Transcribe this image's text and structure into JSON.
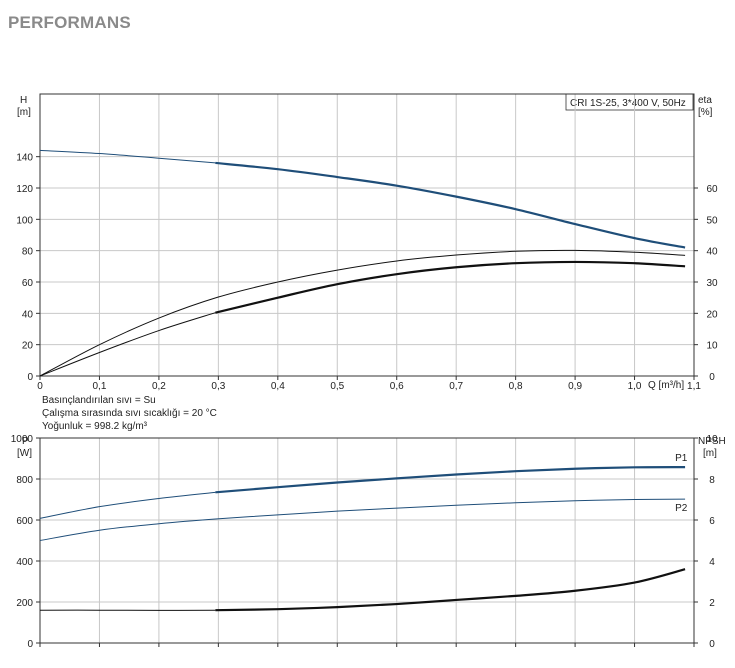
{
  "page": {
    "title": "PERFORMANS"
  },
  "chart_data": [
    {
      "type": "line",
      "legend_box": "CRI 1S-25, 3*400 V, 50Hz",
      "xlabel": "Q [m³/h]",
      "ylabel_left": [
        "H",
        "[m]"
      ],
      "ylabel_right": [
        "eta",
        "[%]"
      ],
      "xlim": [
        0,
        1.1
      ],
      "ylim_left": [
        0,
        180
      ],
      "ylim_right": [
        0,
        90
      ],
      "x_ticks": [
        "0",
        "0,1",
        "0,2",
        "0,3",
        "0,4",
        "0,5",
        "0,6",
        "0,7",
        "0,8",
        "0,9",
        "1,0",
        "1,1"
      ],
      "x_tick_values": [
        0,
        0.1,
        0.2,
        0.3,
        0.4,
        0.5,
        0.6,
        0.7,
        0.8,
        0.9,
        1.0,
        1.1
      ],
      "y_ticks_left": [
        0,
        20,
        40,
        60,
        80,
        100,
        120,
        140
      ],
      "y_ticks_right": [
        0,
        10,
        20,
        30,
        40,
        50,
        60
      ],
      "grid": true,
      "series": [
        {
          "axis": "left",
          "color": "#1f4e79",
          "thin_until": 0.295,
          "x": [
            0,
            0.1,
            0.2,
            0.295,
            0.4,
            0.5,
            0.6,
            0.7,
            0.8,
            0.9,
            1.0,
            1.085
          ],
          "y": [
            144,
            142,
            139,
            136,
            132,
            127,
            121.5,
            114.5,
            106.5,
            97,
            88,
            82
          ]
        },
        {
          "axis": "right",
          "color": "#111111",
          "thin_until": 1.2,
          "x": [
            0,
            0.1,
            0.2,
            0.3,
            0.4,
            0.5,
            0.6,
            0.7,
            0.8,
            0.9,
            1.0,
            1.085
          ],
          "y": [
            0,
            10,
            18.5,
            25.2,
            30,
            33.8,
            36.7,
            38.6,
            39.8,
            40.1,
            39.5,
            38.5
          ]
        },
        {
          "axis": "right",
          "color": "#111111",
          "thin_until": 0.295,
          "x": [
            0,
            0.1,
            0.2,
            0.295,
            0.4,
            0.5,
            0.6,
            0.7,
            0.8,
            0.9,
            1.0,
            1.085
          ],
          "y": [
            0,
            7.5,
            14.5,
            20.2,
            25,
            29.3,
            32.5,
            34.7,
            36,
            36.4,
            36,
            35
          ]
        }
      ]
    },
    {
      "type": "line",
      "xlabel": "",
      "ylabel_left": [
        "P",
        "[W]"
      ],
      "ylabel_right": [
        "NPSH",
        "[m]"
      ],
      "xlim": [
        0,
        1.1
      ],
      "ylim_left": [
        0,
        1000
      ],
      "ylim_right": [
        0,
        10
      ],
      "y_ticks_left": [
        0,
        200,
        400,
        600,
        800,
        1000
      ],
      "y_ticks_right": [
        0,
        2,
        4,
        6,
        8,
        10
      ],
      "grid": true,
      "series": [
        {
          "name": "P1",
          "axis": "left",
          "color": "#1f4e79",
          "thin_until": 0.295,
          "x": [
            0,
            0.1,
            0.2,
            0.295,
            0.4,
            0.5,
            0.6,
            0.7,
            0.8,
            0.9,
            1.0,
            1.085
          ],
          "y": [
            608,
            665,
            705,
            735,
            760,
            783,
            803,
            822,
            838,
            850,
            857,
            858
          ]
        },
        {
          "name": "P2",
          "axis": "left",
          "color": "#1f4e79",
          "thin_until": 1.2,
          "x": [
            0,
            0.1,
            0.2,
            0.295,
            0.4,
            0.5,
            0.6,
            0.7,
            0.8,
            0.9,
            1.0,
            1.085
          ],
          "y": [
            500,
            550,
            582,
            605,
            625,
            643,
            658,
            672,
            684,
            694,
            700,
            702
          ]
        },
        {
          "axis": "right",
          "color": "#111111",
          "thin_until": 0.295,
          "x": [
            0,
            0.1,
            0.2,
            0.295,
            0.4,
            0.5,
            0.6,
            0.7,
            0.8,
            0.9,
            1.0,
            1.085
          ],
          "y": [
            1.6,
            1.6,
            1.59,
            1.6,
            1.65,
            1.75,
            1.9,
            2.1,
            2.3,
            2.55,
            2.95,
            3.6
          ]
        }
      ]
    }
  ],
  "notes": [
    "Basınçlandırılan sıvı = Su",
    "Çalışma sırasında sıvı sıcaklığı = 20 °C",
    "Yoğunluk = 998.2 kg/m³"
  ]
}
